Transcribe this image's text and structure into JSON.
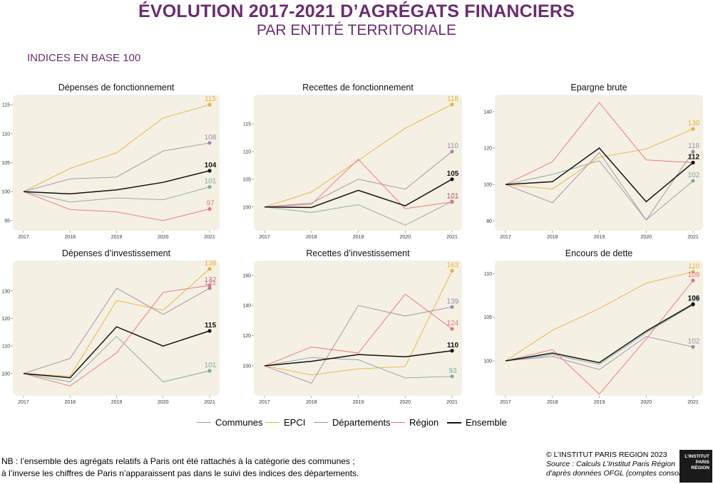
{
  "title": "ÉVOLUTION 2017-2021 D’AGRÉGATS FINANCIERS",
  "subtitle": "PAR ENTITÉ TERRITORIALE",
  "index_label": "INDICES EN BASE 100",
  "colors": {
    "Communes": "#7fa6a6",
    "EPCI": "#e4b23a",
    "Départements": "#a08aa6",
    "Région": "#e8737a",
    "Ensemble": "#111111",
    "panel_bg": "#f5f0e4",
    "title": "#6b2c6f"
  },
  "legend": [
    "Communes",
    "EPCI",
    "Départements",
    "Région",
    "Ensemble"
  ],
  "note_line1": "NB : l’ensemble des agrégats relatifs à Paris ont été rattachés à la catégorie des communes ;",
  "note_line2": "à l’inverse les chiffres de Paris n’apparaissent pas dans le suivi des indices des départements.",
  "credit_line1": "© L’INSTITUT PARIS REGION 2023",
  "credit_line2": "Source : Calculs L’Institut Paris Région",
  "credit_line3": "d’après données OFGL (comptes consolidés)",
  "logo_text": [
    "L’INSTITUT",
    "PARIS",
    "RÉGION"
  ],
  "chart_data": [
    {
      "type": "line",
      "title": "Dépenses de fonctionnement",
      "x": [
        "2017",
        "2018",
        "2019",
        "2020",
        "2021"
      ],
      "ylim": [
        94,
        116
      ],
      "yticks": [
        95,
        100,
        105,
        110,
        115
      ],
      "series": [
        {
          "name": "Communes",
          "values": [
            100,
            98.2,
            98.9,
            98.6,
            100.8
          ],
          "label": "101"
        },
        {
          "name": "EPCI",
          "values": [
            100,
            104,
            106.7,
            112.7,
            115
          ],
          "label": "115"
        },
        {
          "name": "Départements",
          "values": [
            100,
            102.2,
            102.5,
            107,
            108.4
          ],
          "label": "108"
        },
        {
          "name": "Région",
          "values": [
            100,
            96.9,
            96.5,
            95,
            97
          ],
          "label": "97"
        },
        {
          "name": "Ensemble",
          "values": [
            100,
            99.6,
            100.3,
            101.6,
            103.6
          ],
          "label": "104"
        }
      ]
    },
    {
      "type": "line",
      "title": "Recettes de fonctionnement",
      "x": [
        "2017",
        "2018",
        "2019",
        "2020",
        "2021"
      ],
      "ylim": [
        96.5,
        119.5
      ],
      "yticks": [
        100,
        105,
        110,
        115
      ],
      "series": [
        {
          "name": "Communes",
          "values": [
            100,
            99,
            100.4,
            96.7,
            101
          ],
          "label": "101"
        },
        {
          "name": "EPCI",
          "values": [
            100,
            102.7,
            108.4,
            114.2,
            118.5
          ],
          "label": "118"
        },
        {
          "name": "Départements",
          "values": [
            100,
            100.7,
            105,
            103.2,
            110
          ],
          "label": "110"
        },
        {
          "name": "Région",
          "values": [
            100,
            100.5,
            108.6,
            99.7,
            100.9
          ],
          "label": "101"
        },
        {
          "name": "Ensemble",
          "values": [
            100,
            99.9,
            103,
            100.2,
            105
          ],
          "label": "105"
        }
      ]
    },
    {
      "type": "line",
      "title": "Epargne brute",
      "x": [
        "2017",
        "2018",
        "2019",
        "2020",
        "2021"
      ],
      "ylim": [
        77,
        147
      ],
      "yticks": [
        80,
        100,
        120,
        140
      ],
      "series": [
        {
          "name": "Communes",
          "values": [
            100,
            105.5,
            113,
            80.5,
            102
          ],
          "label": "102"
        },
        {
          "name": "EPCI",
          "values": [
            100,
            97.5,
            115,
            119.5,
            130.5
          ],
          "label": "130"
        },
        {
          "name": "Départements",
          "values": [
            100,
            90,
            117.5,
            80.5,
            118
          ],
          "label": "118"
        },
        {
          "name": "Région",
          "values": [
            100,
            112.5,
            145,
            113.5,
            112
          ],
          "label": "112"
        },
        {
          "name": "Ensemble",
          "values": [
            100,
            101.5,
            120,
            90.5,
            112
          ],
          "label": "112"
        }
      ]
    },
    {
      "type": "line",
      "title": "Dépenses d’investissement",
      "x": [
        "2017",
        "2018",
        "2019",
        "2020",
        "2021"
      ],
      "ylim": [
        93.5,
        139.5
      ],
      "yticks": [
        100,
        110,
        120,
        130
      ],
      "series": [
        {
          "name": "Communes",
          "values": [
            100,
            97,
            113.5,
            97,
            101
          ],
          "label": "101"
        },
        {
          "name": "EPCI",
          "values": [
            100,
            99,
            126.5,
            123,
            138
          ],
          "label": "138"
        },
        {
          "name": "Départements",
          "values": [
            100,
            105.5,
            131,
            121.5,
            131
          ],
          "label": "131"
        },
        {
          "name": "Région",
          "values": [
            100,
            95.5,
            107.5,
            129.5,
            132
          ],
          "label": "132"
        },
        {
          "name": "Ensemble",
          "values": [
            100,
            98.5,
            117,
            110,
            115.5
          ],
          "label": "115"
        }
      ]
    },
    {
      "type": "line",
      "title": "Recettes d’investissement",
      "x": [
        "2017",
        "2018",
        "2019",
        "2020",
        "2021"
      ],
      "ylim": [
        83,
        167
      ],
      "yticks": [
        100,
        120,
        140,
        160
      ],
      "series": [
        {
          "name": "Communes",
          "values": [
            100,
            105.5,
            104,
            92,
            93
          ],
          "label": "93"
        },
        {
          "name": "EPCI",
          "values": [
            100,
            94,
            98,
            99.5,
            163
          ],
          "label": "163"
        },
        {
          "name": "Départements",
          "values": [
            100,
            88.5,
            140,
            133,
            139
          ],
          "label": "139"
        },
        {
          "name": "Région",
          "values": [
            100,
            112.5,
            108.5,
            147.5,
            124.5
          ],
          "label": "124"
        },
        {
          "name": "Ensemble",
          "values": [
            100,
            103,
            107.5,
            106,
            110
          ],
          "label": "110"
        }
      ]
    },
    {
      "type": "line",
      "title": "Encours de dette",
      "x": [
        "2017",
        "2018",
        "2019",
        "2020",
        "2021"
      ],
      "ylim": [
        96.5,
        111
      ],
      "yticks": [
        100,
        105,
        110
      ],
      "series": [
        {
          "name": "Communes",
          "values": [
            100,
            100.7,
            99.6,
            103.2,
            106.4
          ],
          "label": "106"
        },
        {
          "name": "EPCI",
          "values": [
            100,
            103.5,
            106,
            108.9,
            110.2
          ],
          "label": "110"
        },
        {
          "name": "Départements",
          "values": [
            100,
            100.5,
            99,
            102.8,
            101.6
          ],
          "label": "102"
        },
        {
          "name": "Région",
          "values": [
            100,
            101.3,
            96.2,
            102.5,
            109.2
          ],
          "label": "109"
        },
        {
          "name": "Ensemble",
          "values": [
            100,
            100.9,
            99.8,
            103.4,
            106.5
          ],
          "label": "106"
        }
      ]
    }
  ]
}
